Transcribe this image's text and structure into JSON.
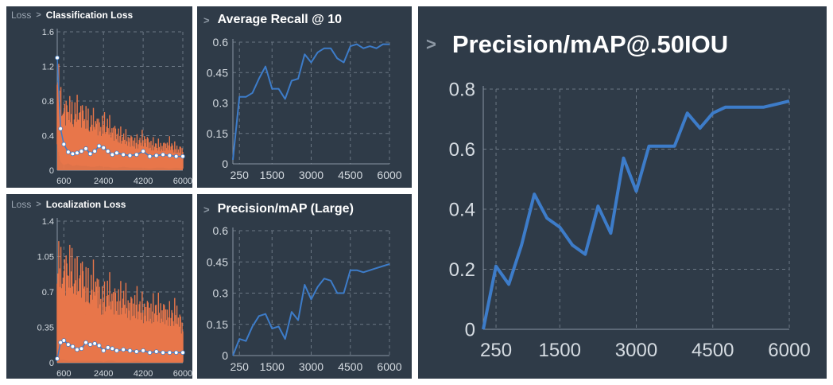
{
  "panels": {
    "cls": {
      "crumb": "Loss",
      "title": "Classification Loss"
    },
    "loc": {
      "crumb": "Loss",
      "title": "Localization Loss"
    },
    "recall": {
      "title": "Average Recall @ 10"
    },
    "large": {
      "title": "Precision/mAP (Large)"
    },
    "map50": {
      "title": "Precision/mAP@.50IOU"
    }
  },
  "colors": {
    "panel_bg": "#2f3b48",
    "line": "#3d7cc9",
    "raw": "#e8764a",
    "smooth_marker": "#ffffff"
  },
  "icons": {
    "chevron": "chevron-right-icon"
  },
  "chart_data": [
    {
      "id": "cls",
      "type": "area",
      "title": "Classification Loss",
      "xlim": [
        300,
        6000
      ],
      "ylim": [
        0,
        1.6
      ],
      "xticks": [
        600,
        2400,
        4200,
        6000
      ],
      "yticks": [
        0.4,
        0.8,
        1.2,
        1.6
      ],
      "series": [
        {
          "kind": "raw",
          "x": [
            300,
            450,
            600,
            800,
            1000,
            1200,
            1400,
            1600,
            1800,
            2000,
            2200,
            2400,
            2600,
            2800,
            3000,
            3300,
            3600,
            3900,
            4200,
            4500,
            4800,
            5100,
            5400,
            5700,
            6000
          ],
          "upper": [
            1.55,
            1.02,
            0.85,
            0.95,
            0.82,
            0.9,
            0.85,
            0.8,
            0.7,
            0.75,
            0.65,
            0.7,
            0.68,
            0.6,
            0.55,
            0.5,
            0.45,
            0.42,
            0.48,
            0.4,
            0.38,
            0.35,
            0.4,
            0.32,
            0.3
          ],
          "lower": [
            0.3,
            0.1,
            0.06,
            0.08,
            0.05,
            0.06,
            0.05,
            0.05,
            0.04,
            0.04,
            0.05,
            0.04,
            0.04,
            0.03,
            0.03,
            0.04,
            0.03,
            0.03,
            0.03,
            0.02,
            0.03,
            0.03,
            0.02,
            0.03,
            0.02
          ]
        },
        {
          "kind": "smoothed",
          "x": [
            300,
            450,
            600,
            800,
            1000,
            1200,
            1400,
            1600,
            1800,
            2000,
            2200,
            2400,
            2600,
            2800,
            3000,
            3300,
            3600,
            3900,
            4200,
            4500,
            4800,
            5100,
            5400,
            5700,
            6000
          ],
          "values": [
            1.3,
            0.48,
            0.3,
            0.21,
            0.19,
            0.2,
            0.22,
            0.25,
            0.19,
            0.22,
            0.28,
            0.26,
            0.22,
            0.18,
            0.2,
            0.18,
            0.17,
            0.18,
            0.22,
            0.16,
            0.17,
            0.18,
            0.17,
            0.16,
            0.16
          ]
        }
      ]
    },
    {
      "id": "loc",
      "type": "area",
      "title": "Localization Loss",
      "xlim": [
        300,
        6000
      ],
      "ylim": [
        0,
        1.4
      ],
      "xticks": [
        600,
        2400,
        4200,
        6000
      ],
      "yticks": [
        0.35,
        0.7,
        1.05,
        1.4
      ],
      "series": [
        {
          "kind": "raw",
          "x": [
            300,
            450,
            600,
            800,
            1000,
            1200,
            1400,
            1600,
            1800,
            2000,
            2200,
            2400,
            2600,
            2800,
            3000,
            3300,
            3600,
            3900,
            4200,
            4500,
            4800,
            5100,
            5400,
            5700,
            6000
          ],
          "upper": [
            1.38,
            1.2,
            1.15,
            1.25,
            1.2,
            1.08,
            1.15,
            1.02,
            0.95,
            1.08,
            0.9,
            0.8,
            0.95,
            0.85,
            0.8,
            0.85,
            0.72,
            0.78,
            0.7,
            0.68,
            0.72,
            0.66,
            0.62,
            0.66,
            0.45
          ],
          "lower": [
            0.05,
            0.03,
            0.03,
            0.02,
            0.02,
            0.02,
            0.02,
            0.02,
            0.02,
            0.02,
            0.02,
            0.01,
            0.02,
            0.02,
            0.01,
            0.01,
            0.01,
            0.02,
            0.01,
            0.01,
            0.01,
            0.01,
            0.01,
            0.01,
            0.01
          ]
        },
        {
          "kind": "smoothed",
          "x": [
            300,
            450,
            600,
            800,
            1000,
            1200,
            1400,
            1600,
            1800,
            2000,
            2200,
            2400,
            2600,
            2800,
            3000,
            3300,
            3600,
            3900,
            4200,
            4500,
            4800,
            5100,
            5400,
            5700,
            6000
          ],
          "values": [
            0.04,
            0.2,
            0.22,
            0.18,
            0.16,
            0.13,
            0.14,
            0.2,
            0.18,
            0.19,
            0.17,
            0.12,
            0.15,
            0.14,
            0.12,
            0.13,
            0.12,
            0.11,
            0.12,
            0.1,
            0.11,
            0.1,
            0.1,
            0.1,
            0.1
          ]
        }
      ]
    },
    {
      "id": "recall",
      "type": "line",
      "title": "Average Recall @ 10",
      "xlim": [
        0,
        6000
      ],
      "ylim": [
        0,
        0.6
      ],
      "xticks": [
        250,
        1500,
        3000,
        4500,
        6000
      ],
      "yticks": [
        0,
        0.15,
        0.3,
        0.45,
        0.6
      ],
      "x": [
        0,
        250,
        500,
        750,
        1000,
        1250,
        1500,
        1750,
        2000,
        2250,
        2500,
        2750,
        3000,
        3250,
        3500,
        3750,
        4000,
        4250,
        4500,
        4750,
        5000,
        5250,
        5500,
        5750,
        6000
      ],
      "values": [
        0.02,
        0.33,
        0.33,
        0.35,
        0.42,
        0.48,
        0.37,
        0.37,
        0.32,
        0.41,
        0.42,
        0.54,
        0.5,
        0.55,
        0.57,
        0.57,
        0.52,
        0.5,
        0.58,
        0.59,
        0.57,
        0.58,
        0.57,
        0.59,
        0.59
      ]
    },
    {
      "id": "large",
      "type": "line",
      "title": "Precision/mAP (Large)",
      "xlim": [
        0,
        6000
      ],
      "ylim": [
        0,
        0.6
      ],
      "xticks": [
        250,
        1500,
        3000,
        4500,
        6000
      ],
      "yticks": [
        0,
        0.15,
        0.3,
        0.45,
        0.6
      ],
      "x": [
        0,
        250,
        500,
        750,
        1000,
        1250,
        1500,
        1750,
        2000,
        2250,
        2500,
        2750,
        3000,
        3250,
        3500,
        3750,
        4000,
        4250,
        4500,
        4750,
        5000,
        5250,
        5500,
        5750,
        6000
      ],
      "values": [
        0.0,
        0.08,
        0.07,
        0.14,
        0.19,
        0.2,
        0.13,
        0.14,
        0.08,
        0.21,
        0.17,
        0.34,
        0.27,
        0.33,
        0.37,
        0.36,
        0.3,
        0.3,
        0.41,
        0.41,
        0.4,
        0.41,
        0.42,
        0.43,
        0.44
      ]
    },
    {
      "id": "map50",
      "type": "line",
      "title": "Precision/mAP@.50IOU",
      "xlim": [
        0,
        6000
      ],
      "ylim": [
        0,
        0.8
      ],
      "xticks": [
        250,
        1500,
        3000,
        4500,
        6000
      ],
      "yticks": [
        0,
        0.2,
        0.4,
        0.6,
        0.8
      ],
      "x": [
        0,
        250,
        500,
        750,
        1000,
        1250,
        1500,
        1750,
        2000,
        2250,
        2500,
        2750,
        3000,
        3250,
        3500,
        3750,
        4000,
        4250,
        4500,
        4750,
        5000,
        5250,
        5500,
        5750,
        6000
      ],
      "values": [
        0.0,
        0.21,
        0.15,
        0.28,
        0.45,
        0.37,
        0.34,
        0.28,
        0.25,
        0.41,
        0.32,
        0.57,
        0.46,
        0.61,
        0.61,
        0.61,
        0.72,
        0.67,
        0.72,
        0.74,
        0.74,
        0.74,
        0.74,
        0.75,
        0.76
      ]
    }
  ]
}
